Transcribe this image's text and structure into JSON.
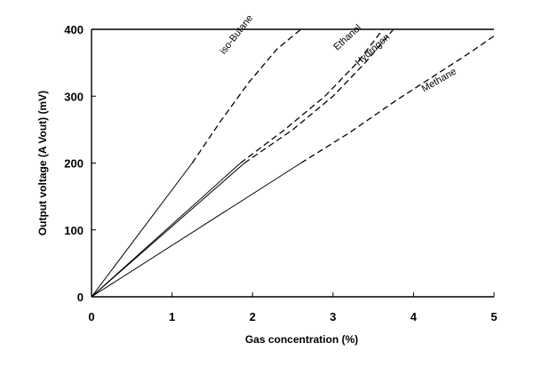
{
  "chart_data": {
    "type": "line",
    "xlabel": "Gas concentration (%)",
    "ylabel": "Output voltage  (A Vout)  (mV)",
    "xlim": [
      0,
      5
    ],
    "ylim": [
      0,
      400
    ],
    "xticks": [
      "0",
      "1",
      "2",
      "3",
      "4",
      "5"
    ],
    "yticks": [
      "0",
      "100",
      "200",
      "300",
      "400"
    ],
    "grid": false,
    "legend": "inline labels",
    "series": [
      {
        "name": "iso-Butane",
        "solid": [
          [
            0,
            0
          ],
          [
            1.25,
            200
          ]
        ],
        "dashed": [
          [
            1.25,
            200
          ],
          [
            1.6,
            262
          ],
          [
            1.95,
            320
          ],
          [
            2.3,
            370
          ],
          [
            2.6,
            400
          ]
        ]
      },
      {
        "name": "Ethanol",
        "solid": [
          [
            0,
            0
          ],
          [
            1.85,
            200
          ]
        ],
        "dashed": [
          [
            1.85,
            200
          ],
          [
            2.4,
            250
          ],
          [
            2.9,
            300
          ],
          [
            3.3,
            350
          ],
          [
            3.62,
            400
          ]
        ]
      },
      {
        "name": "Hydrogen",
        "solid": [
          [
            0,
            0
          ],
          [
            1.9,
            200
          ]
        ],
        "dashed": [
          [
            1.9,
            200
          ],
          [
            2.5,
            250
          ],
          [
            3.0,
            300
          ],
          [
            3.4,
            350
          ],
          [
            3.75,
            400
          ]
        ]
      },
      {
        "name": "Methane",
        "solid": [
          [
            0,
            0
          ],
          [
            2.6,
            200
          ]
        ],
        "dashed": [
          [
            2.6,
            200
          ],
          [
            3.2,
            245
          ],
          [
            3.8,
            295
          ],
          [
            4.25,
            330
          ],
          [
            4.7,
            365
          ],
          [
            5.0,
            390
          ]
        ]
      }
    ]
  }
}
